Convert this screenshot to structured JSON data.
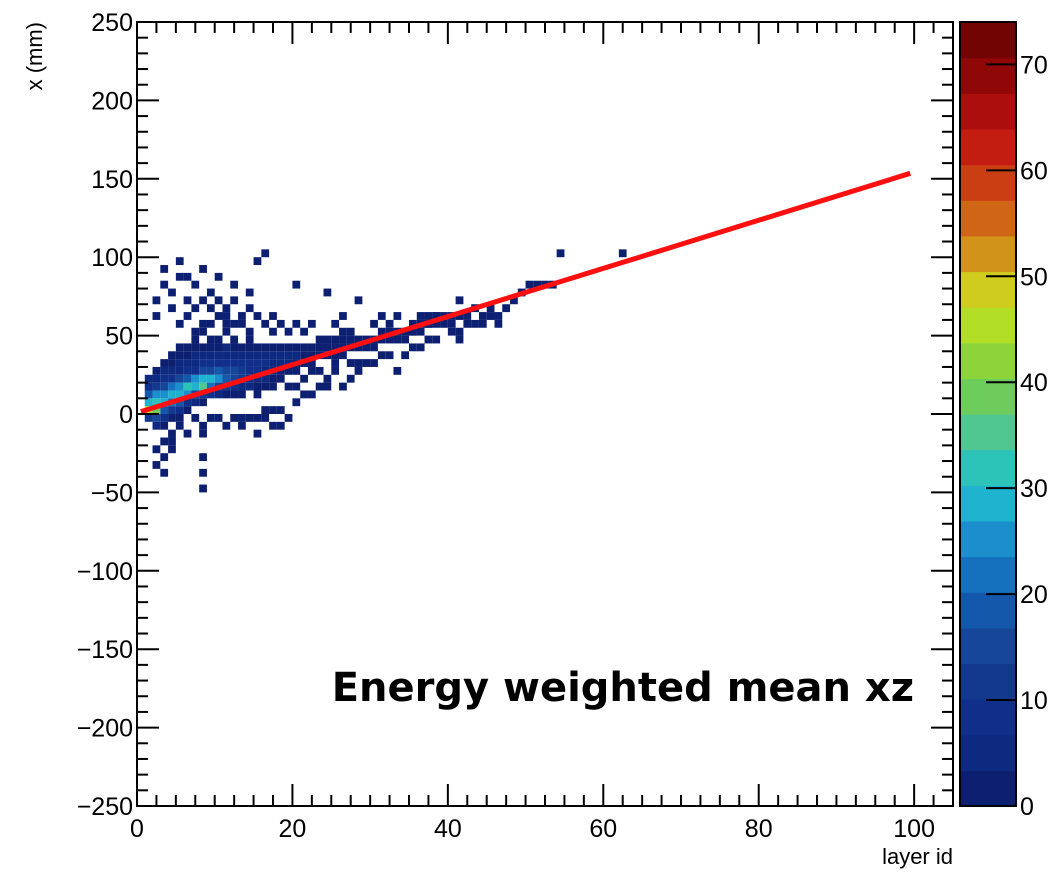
{
  "chart_data": {
    "type": "heatmap",
    "title": "",
    "xlabel": "layer id",
    "ylabel": "x (mm)",
    "xlim": [
      0,
      105
    ],
    "ylim": [
      -250,
      250
    ],
    "x_ticks": [
      0,
      20,
      40,
      60,
      80,
      100
    ],
    "y_ticks": [
      -250,
      -200,
      -150,
      -100,
      -50,
      0,
      50,
      100,
      150,
      200,
      250
    ],
    "grid": false,
    "annotation": "Energy weighted mean xz",
    "colorbar": {
      "range": [
        0,
        74
      ],
      "ticks": [
        0,
        10,
        20,
        30,
        40,
        50,
        60,
        70
      ],
      "colors": [
        "#0c1f70",
        "#0e2a80",
        "#102f8a",
        "#13398f",
        "#154699",
        "#1458ab",
        "#1570bd",
        "#1b8fcd",
        "#1fb3cf",
        "#2cc4b8",
        "#50c690",
        "#6dcc5b",
        "#8cd43a",
        "#b2de27",
        "#d0cc1d",
        "#d1931a",
        "#d06516",
        "#cb3e13",
        "#c21d10",
        "#ab0e0c",
        "#900707",
        "#720404"
      ]
    },
    "bins": [
      [
        1,
        0,
        45
      ],
      [
        1,
        5,
        30
      ],
      [
        1,
        10,
        18
      ],
      [
        1,
        -5,
        12
      ],
      [
        1,
        15,
        8
      ],
      [
        1,
        20,
        5
      ],
      [
        2,
        0,
        38
      ],
      [
        2,
        5,
        32
      ],
      [
        2,
        10,
        24
      ],
      [
        2,
        -5,
        14
      ],
      [
        2,
        15,
        12
      ],
      [
        2,
        20,
        6
      ],
      [
        2,
        -10,
        4
      ],
      [
        2,
        25,
        3
      ],
      [
        3,
        5,
        28
      ],
      [
        3,
        10,
        26
      ],
      [
        3,
        0,
        20
      ],
      [
        3,
        15,
        16
      ],
      [
        3,
        20,
        8
      ],
      [
        3,
        -5,
        8
      ],
      [
        3,
        25,
        4
      ],
      [
        3,
        30,
        2
      ],
      [
        3,
        -10,
        2
      ],
      [
        4,
        10,
        30
      ],
      [
        4,
        5,
        22
      ],
      [
        4,
        15,
        22
      ],
      [
        4,
        0,
        12
      ],
      [
        4,
        20,
        10
      ],
      [
        4,
        25,
        5
      ],
      [
        4,
        30,
        3
      ],
      [
        4,
        -5,
        3
      ],
      [
        4,
        35,
        2
      ],
      [
        5,
        10,
        28
      ],
      [
        5,
        15,
        26
      ],
      [
        5,
        5,
        18
      ],
      [
        5,
        20,
        14
      ],
      [
        5,
        0,
        8
      ],
      [
        5,
        25,
        6
      ],
      [
        5,
        30,
        4
      ],
      [
        5,
        35,
        2
      ],
      [
        5,
        40,
        2
      ],
      [
        6,
        15,
        32
      ],
      [
        6,
        10,
        24
      ],
      [
        6,
        20,
        18
      ],
      [
        6,
        5,
        10
      ],
      [
        6,
        25,
        8
      ],
      [
        6,
        30,
        5
      ],
      [
        6,
        35,
        3
      ],
      [
        6,
        40,
        2
      ],
      [
        6,
        0,
        3
      ],
      [
        7,
        15,
        30
      ],
      [
        7,
        20,
        24
      ],
      [
        7,
        10,
        16
      ],
      [
        7,
        25,
        10
      ],
      [
        7,
        30,
        6
      ],
      [
        7,
        5,
        5
      ],
      [
        7,
        35,
        4
      ],
      [
        7,
        40,
        2
      ],
      [
        7,
        45,
        2
      ],
      [
        8,
        15,
        34
      ],
      [
        8,
        20,
        28
      ],
      [
        8,
        10,
        12
      ],
      [
        8,
        25,
        14
      ],
      [
        8,
        30,
        8
      ],
      [
        8,
        35,
        4
      ],
      [
        8,
        40,
        3
      ],
      [
        8,
        5,
        3
      ],
      [
        8,
        50,
        1
      ],
      [
        9,
        20,
        28
      ],
      [
        9,
        15,
        22
      ],
      [
        9,
        25,
        16
      ],
      [
        9,
        10,
        8
      ],
      [
        9,
        30,
        10
      ],
      [
        9,
        35,
        5
      ],
      [
        9,
        40,
        3
      ],
      [
        9,
        45,
        2
      ],
      [
        10,
        20,
        26
      ],
      [
        10,
        15,
        16
      ],
      [
        10,
        25,
        18
      ],
      [
        10,
        30,
        10
      ],
      [
        10,
        10,
        5
      ],
      [
        10,
        35,
        6
      ],
      [
        10,
        40,
        3
      ],
      [
        10,
        45,
        2
      ],
      [
        11,
        20,
        20
      ],
      [
        11,
        25,
        16
      ],
      [
        11,
        15,
        12
      ],
      [
        11,
        30,
        10
      ],
      [
        11,
        35,
        6
      ],
      [
        11,
        10,
        3
      ],
      [
        11,
        40,
        4
      ],
      [
        11,
        50,
        1
      ],
      [
        12,
        20,
        16
      ],
      [
        12,
        25,
        14
      ],
      [
        12,
        30,
        10
      ],
      [
        12,
        15,
        8
      ],
      [
        12,
        35,
        6
      ],
      [
        12,
        40,
        3
      ],
      [
        12,
        10,
        2
      ],
      [
        12,
        45,
        2
      ],
      [
        13,
        25,
        12
      ],
      [
        13,
        20,
        12
      ],
      [
        13,
        30,
        9
      ],
      [
        13,
        15,
        6
      ],
      [
        13,
        35,
        5
      ],
      [
        13,
        40,
        3
      ],
      [
        13,
        10,
        1
      ],
      [
        14,
        25,
        10
      ],
      [
        14,
        30,
        8
      ],
      [
        14,
        20,
        8
      ],
      [
        14,
        35,
        5
      ],
      [
        14,
        15,
        4
      ],
      [
        14,
        40,
        2
      ],
      [
        14,
        45,
        1
      ],
      [
        15,
        25,
        8
      ],
      [
        15,
        30,
        8
      ],
      [
        15,
        20,
        6
      ],
      [
        15,
        35,
        4
      ],
      [
        15,
        40,
        3
      ],
      [
        15,
        15,
        3
      ],
      [
        15,
        10,
        1
      ],
      [
        16,
        30,
        7
      ],
      [
        16,
        25,
        6
      ],
      [
        16,
        35,
        4
      ],
      [
        16,
        20,
        4
      ],
      [
        16,
        40,
        3
      ],
      [
        16,
        15,
        2
      ],
      [
        17,
        30,
        6
      ],
      [
        17,
        35,
        5
      ],
      [
        17,
        25,
        4
      ],
      [
        17,
        40,
        3
      ],
      [
        17,
        20,
        3
      ],
      [
        17,
        15,
        1
      ],
      [
        18,
        30,
        5
      ],
      [
        18,
        35,
        5
      ],
      [
        18,
        40,
        3
      ],
      [
        18,
        25,
        3
      ],
      [
        18,
        20,
        2
      ],
      [
        19,
        35,
        4
      ],
      [
        19,
        30,
        4
      ],
      [
        19,
        40,
        3
      ],
      [
        19,
        25,
        2
      ],
      [
        20,
        35,
        4
      ],
      [
        20,
        40,
        3
      ],
      [
        20,
        30,
        3
      ],
      [
        20,
        25,
        2
      ],
      [
        21,
        35,
        3
      ],
      [
        21,
        40,
        3
      ],
      [
        21,
        30,
        2
      ],
      [
        22,
        35,
        3
      ],
      [
        22,
        40,
        3
      ],
      [
        22,
        30,
        2
      ],
      [
        23,
        35,
        3
      ],
      [
        23,
        40,
        2
      ],
      [
        23,
        45,
        1
      ],
      [
        24,
        40,
        3
      ],
      [
        24,
        35,
        2
      ],
      [
        24,
        45,
        1
      ],
      [
        25,
        40,
        3
      ],
      [
        25,
        35,
        2
      ],
      [
        25,
        45,
        1
      ],
      [
        26,
        40,
        2
      ],
      [
        26,
        45,
        2
      ],
      [
        26,
        35,
        1
      ],
      [
        27,
        40,
        2
      ],
      [
        27,
        45,
        1
      ],
      [
        28,
        40,
        2
      ],
      [
        28,
        45,
        2
      ],
      [
        29,
        45,
        2
      ],
      [
        29,
        40,
        1
      ],
      [
        30,
        45,
        2
      ],
      [
        30,
        40,
        1
      ],
      [
        31,
        45,
        2
      ],
      [
        31,
        50,
        1
      ],
      [
        32,
        45,
        2
      ],
      [
        32,
        50,
        1
      ],
      [
        33,
        45,
        1
      ],
      [
        33,
        50,
        1
      ],
      [
        34,
        50,
        2
      ],
      [
        34,
        45,
        1
      ],
      [
        35,
        50,
        1
      ],
      [
        35,
        55,
        1
      ],
      [
        36,
        55,
        1
      ],
      [
        36,
        50,
        1
      ],
      [
        37,
        55,
        1
      ],
      [
        37,
        60,
        1
      ],
      [
        38,
        55,
        1
      ],
      [
        38,
        60,
        1
      ],
      [
        39,
        60,
        1
      ],
      [
        39,
        55,
        1
      ],
      [
        40,
        60,
        1
      ],
      [
        41,
        60,
        1
      ],
      [
        42,
        60,
        1
      ],
      [
        43,
        65,
        1
      ],
      [
        45,
        65,
        1
      ],
      [
        48,
        70,
        1
      ],
      [
        50,
        80,
        1
      ],
      [
        52,
        80,
        1
      ],
      [
        54,
        100,
        1
      ],
      [
        62,
        100,
        1
      ],
      [
        3,
        -20,
        2
      ],
      [
        3,
        -30,
        1
      ],
      [
        2,
        -25,
        1
      ],
      [
        2,
        -35,
        1
      ],
      [
        3,
        -40,
        1
      ],
      [
        4,
        -15,
        2
      ],
      [
        4,
        -20,
        1
      ],
      [
        5,
        -5,
        2
      ],
      [
        5,
        -10,
        1
      ],
      [
        6,
        -15,
        1
      ],
      [
        7,
        -5,
        1
      ],
      [
        8,
        -10,
        1
      ],
      [
        8,
        -15,
        1
      ],
      [
        8,
        -30,
        1
      ],
      [
        8,
        -40,
        1
      ],
      [
        9,
        -5,
        1
      ],
      [
        10,
        -5,
        1
      ],
      [
        11,
        -10,
        1
      ],
      [
        12,
        -5,
        1
      ],
      [
        13,
        -10,
        1
      ],
      [
        15,
        -5,
        1
      ],
      [
        17,
        0,
        1
      ],
      [
        18,
        -10,
        1
      ],
      [
        19,
        -5,
        1
      ],
      [
        8,
        -50,
        1
      ],
      [
        2,
        60,
        1
      ],
      [
        2,
        70,
        1
      ],
      [
        3,
        80,
        1
      ],
      [
        3,
        90,
        1
      ],
      [
        4,
        65,
        1
      ],
      [
        4,
        75,
        1
      ],
      [
        5,
        55,
        1
      ],
      [
        5,
        85,
        1
      ],
      [
        5,
        95,
        1
      ],
      [
        6,
        60,
        1
      ],
      [
        6,
        70,
        1
      ],
      [
        6,
        85,
        1
      ],
      [
        7,
        50,
        1
      ],
      [
        7,
        65,
        1
      ],
      [
        7,
        80,
        1
      ],
      [
        8,
        55,
        1
      ],
      [
        8,
        70,
        1
      ],
      [
        8,
        90,
        1
      ],
      [
        9,
        55,
        1
      ],
      [
        9,
        65,
        1
      ],
      [
        9,
        75,
        1
      ],
      [
        10,
        60,
        1
      ],
      [
        10,
        70,
        1
      ],
      [
        10,
        85,
        1
      ],
      [
        11,
        55,
        1
      ],
      [
        11,
        60,
        1
      ],
      [
        11,
        65,
        1
      ],
      [
        12,
        55,
        1
      ],
      [
        12,
        70,
        1
      ],
      [
        12,
        80,
        1
      ],
      [
        13,
        55,
        1
      ],
      [
        13,
        60,
        1
      ],
      [
        14,
        50,
        1
      ],
      [
        14,
        65,
        1
      ],
      [
        14,
        75,
        1
      ],
      [
        15,
        60,
        1
      ],
      [
        15,
        95,
        1
      ],
      [
        16,
        55,
        1
      ],
      [
        16,
        100,
        1
      ],
      [
        17,
        50,
        1
      ],
      [
        17,
        60,
        1
      ],
      [
        18,
        55,
        1
      ],
      [
        19,
        50,
        1
      ],
      [
        20,
        55,
        1
      ],
      [
        20,
        80,
        1
      ],
      [
        21,
        50,
        1
      ],
      [
        22,
        55,
        1
      ],
      [
        24,
        75,
        1
      ],
      [
        25,
        55,
        1
      ],
      [
        26,
        50,
        1
      ],
      [
        26,
        60,
        1
      ],
      [
        27,
        50,
        1
      ],
      [
        28,
        70,
        1
      ],
      [
        30,
        55,
        1
      ],
      [
        31,
        60,
        1
      ],
      [
        32,
        55,
        1
      ],
      [
        33,
        60,
        1
      ],
      [
        35,
        50,
        1
      ],
      [
        36,
        60,
        1
      ],
      [
        37,
        55,
        1
      ],
      [
        38,
        60,
        1
      ],
      [
        40,
        55,
        1
      ],
      [
        41,
        45,
        1
      ],
      [
        41,
        70,
        1
      ],
      [
        42,
        55,
        1
      ],
      [
        44,
        55,
        1
      ],
      [
        45,
        60,
        1
      ],
      [
        46,
        60,
        1
      ],
      [
        47,
        65,
        1
      ],
      [
        49,
        75,
        1
      ],
      [
        51,
        80,
        1
      ],
      [
        53,
        80,
        1
      ],
      [
        16,
        0,
        1
      ],
      [
        16,
        -5,
        1
      ],
      [
        17,
        -10,
        1
      ],
      [
        18,
        0,
        1
      ],
      [
        19,
        15,
        1
      ],
      [
        20,
        5,
        1
      ],
      [
        20,
        15,
        1
      ],
      [
        21,
        10,
        1
      ],
      [
        21,
        20,
        1
      ],
      [
        22,
        10,
        1
      ],
      [
        22,
        25,
        1
      ],
      [
        23,
        15,
        1
      ],
      [
        23,
        25,
        1
      ],
      [
        24,
        15,
        1
      ],
      [
        24,
        20,
        1
      ],
      [
        25,
        25,
        1
      ],
      [
        25,
        30,
        1
      ],
      [
        26,
        15,
        1
      ],
      [
        27,
        20,
        1
      ],
      [
        27,
        30,
        1
      ],
      [
        28,
        25,
        1
      ],
      [
        28,
        30,
        1
      ],
      [
        29,
        30,
        1
      ],
      [
        30,
        30,
        1
      ],
      [
        31,
        35,
        1
      ],
      [
        32,
        35,
        1
      ],
      [
        33,
        25,
        1
      ],
      [
        34,
        35,
        1
      ],
      [
        35,
        40,
        1
      ],
      [
        36,
        40,
        1
      ],
      [
        37,
        45,
        1
      ],
      [
        38,
        45,
        1
      ],
      [
        40,
        50,
        1
      ],
      [
        41,
        50,
        1
      ],
      [
        43,
        55,
        1
      ],
      [
        44,
        60,
        1
      ],
      [
        46,
        55,
        1
      ],
      [
        13,
        -5,
        1
      ],
      [
        14,
        -5,
        1
      ],
      [
        15,
        -15,
        1
      ],
      [
        4,
        -25,
        1
      ]
    ],
    "fit_line": {
      "name": "",
      "color": "#ff1010",
      "x": [
        0.5,
        99.5
      ],
      "y": [
        1.5,
        153.5
      ]
    }
  }
}
